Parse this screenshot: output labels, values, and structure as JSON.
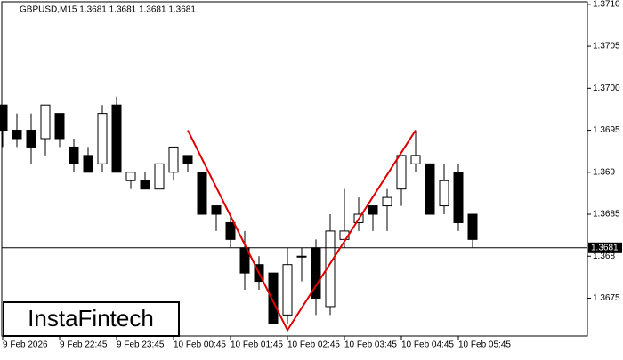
{
  "chart_data": {
    "type": "candlestick",
    "title": "GBPUSD,M15  1.3681 1.3681 1.3681 1.3681",
    "watermark": "InstaFintech",
    "categories": [
      "9 Feb 2026",
      null,
      null,
      null,
      "9 Feb 22:45",
      null,
      null,
      null,
      "9 Feb 23:45",
      null,
      null,
      null,
      "10 Feb 00:45",
      null,
      null,
      null,
      "10 Feb 01:45",
      null,
      null,
      null,
      "10 Feb 02:45",
      null,
      null,
      null,
      "10 Feb 03:45",
      null,
      null,
      null,
      "10 Feb 04:45",
      null,
      null,
      null,
      "10 Feb 05:45",
      null
    ],
    "open": [
      1.3698,
      1.3695,
      1.3695,
      1.3694,
      1.3697,
      1.3693,
      1.3692,
      1.3691,
      1.3698,
      1.3689,
      1.3689,
      1.3688,
      1.369,
      1.3692,
      1.369,
      1.3686,
      1.3684,
      1.3681,
      1.3679,
      1.3678,
      1.3673,
      1.368,
      1.3681,
      1.3674,
      1.3682,
      1.3684,
      1.3686,
      1.3686,
      1.3688,
      1.3691,
      1.3691,
      1.3686,
      1.369,
      1.3685
    ],
    "high": [
      1.3698,
      1.3697,
      1.3697,
      1.3698,
      1.3697,
      1.3694,
      1.3693,
      1.3698,
      1.3699,
      1.369,
      1.369,
      1.3691,
      1.3693,
      1.3692,
      1.369,
      1.3686,
      1.3685,
      1.3683,
      1.368,
      1.3678,
      1.3681,
      1.3681,
      1.3682,
      1.3685,
      1.3688,
      1.3687,
      1.3686,
      1.3688,
      1.3692,
      1.3695,
      1.3691,
      1.3691,
      1.3691,
      1.3685
    ],
    "low": [
      1.3693,
      1.3693,
      1.3691,
      1.3692,
      1.3693,
      1.369,
      1.369,
      1.369,
      1.369,
      1.3688,
      1.3688,
      1.3688,
      1.3689,
      1.369,
      1.3685,
      1.3683,
      1.3681,
      1.3676,
      1.3676,
      1.3672,
      1.3672,
      1.3677,
      1.3673,
      1.3673,
      1.3681,
      1.3683,
      1.3683,
      1.3683,
      1.3686,
      1.369,
      1.3685,
      1.3685,
      1.3683,
      1.3681
    ],
    "close": [
      1.3695,
      1.3694,
      1.3693,
      1.3698,
      1.3694,
      1.3691,
      1.369,
      1.3697,
      1.369,
      1.369,
      1.3688,
      1.3691,
      1.3693,
      1.3691,
      1.3685,
      1.3685,
      1.3682,
      1.3678,
      1.3677,
      1.3672,
      1.3679,
      1.368,
      1.3675,
      1.3683,
      1.3683,
      1.3685,
      1.3685,
      1.3687,
      1.3692,
      1.3692,
      1.3685,
      1.3689,
      1.3684,
      1.3682
    ],
    "up_color": "#ffffff",
    "down_color": "#000000",
    "last_price": 1.3681,
    "pattern": {
      "color": "#e00000",
      "x": [
        13,
        20,
        29
      ],
      "values": [
        1.3695,
        1.36712,
        1.3695
      ]
    },
    "ylim": [
      1.36705,
      1.37103
    ],
    "yticks": [
      1.3675,
      1.368,
      1.3685,
      1.369,
      1.3695,
      {
        "value": 1.37,
        "label": "1.3700"
      },
      1.3705,
      {
        "value": 1.371,
        "label": "1.3710"
      }
    ]
  }
}
